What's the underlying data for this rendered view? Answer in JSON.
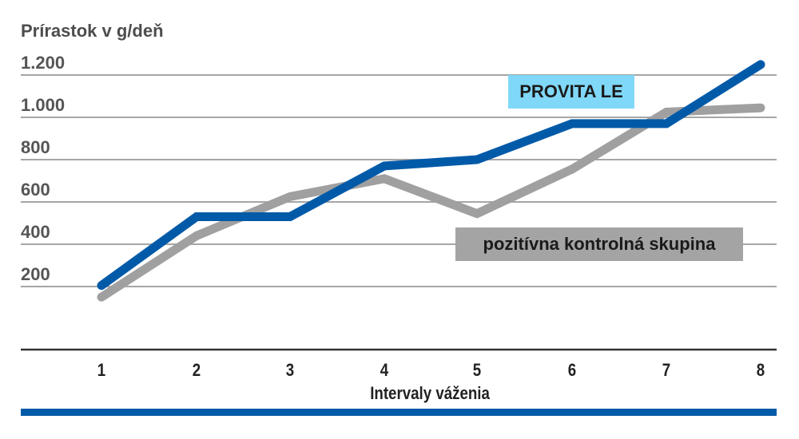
{
  "chart_data": {
    "type": "line",
    "title": "",
    "ylabel": "Prírastok v g/deň",
    "xlabel": "Intervaly váženia",
    "categories": [
      "1",
      "2",
      "3",
      "4",
      "5",
      "6",
      "7",
      "8"
    ],
    "yticks": [
      "200",
      "400",
      "600",
      "800",
      "1.000",
      "1.200"
    ],
    "ytick_values": [
      200,
      400,
      600,
      800,
      1000,
      1200
    ],
    "ylim": [
      0,
      1200
    ],
    "grid": true,
    "legend_position": "inline-labels",
    "series": [
      {
        "name": "PROVITA LE",
        "color": "#005aa8",
        "label_bg": "#80d8f8",
        "values": [
          205,
          530,
          530,
          770,
          800,
          970,
          970,
          1250
        ]
      },
      {
        "name": "pozitívna kontrolná skupina",
        "color": "#a0a0a0",
        "label_bg": "#a4a4a4",
        "values": [
          150,
          440,
          625,
          710,
          545,
          755,
          1025,
          1045
        ]
      }
    ]
  },
  "labels": {
    "y_title": "Prírastok v g/deň",
    "x_title": "Intervaly váženia",
    "legend_blue": "PROVITA LE",
    "legend_gray": "pozitívna kontrolná skupina"
  },
  "colors": {
    "blue": "#005aa8",
    "gray": "#a0a0a0",
    "grid": "#a6a6a6",
    "axis": "#333333",
    "footer": "#005aa8"
  }
}
